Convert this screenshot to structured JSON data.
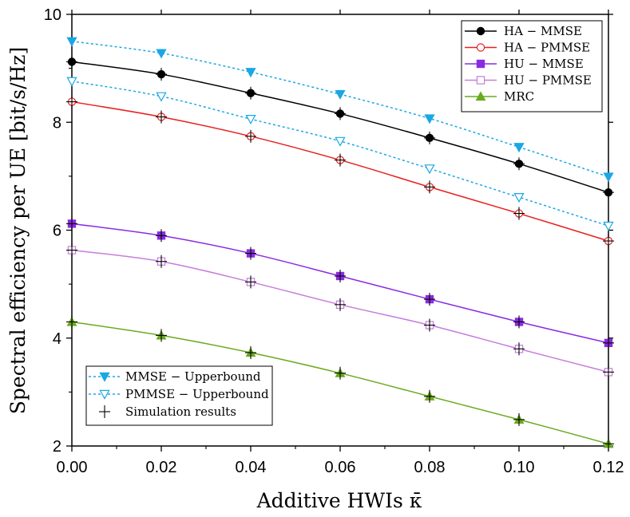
{
  "chart_data": {
    "type": "line",
    "xlabel": "Additive HWIs  κ̄",
    "ylabel": "Spectral efficiency per UE [bit/s/Hz]",
    "xlim": [
      0,
      0.12
    ],
    "ylim": [
      2,
      10
    ],
    "x_ticks": [
      0.0,
      0.02,
      0.04,
      0.06,
      0.08,
      0.1,
      0.12
    ],
    "x_tick_labels": [
      "0.00",
      "0.02",
      "0.04",
      "0.06",
      "0.08",
      "0.10",
      "0.12"
    ],
    "y_ticks": [
      2,
      4,
      6,
      8,
      10
    ],
    "y_tick_labels": [
      "2",
      "4",
      "6",
      "8",
      "10"
    ],
    "x": [
      0.0,
      0.02,
      0.04,
      0.06,
      0.08,
      0.1,
      0.12
    ],
    "series": [
      {
        "name": "HA − MMSE",
        "color": "#000000",
        "marker": "filled-circle",
        "line": "solid",
        "legend": "top-right",
        "values": [
          9.12,
          8.89,
          8.54,
          8.16,
          7.71,
          7.23,
          6.7
        ]
      },
      {
        "name": "HA − PMMSE",
        "color": "#e8201e",
        "marker": "open-circle",
        "line": "solid",
        "legend": "top-right",
        "values": [
          8.38,
          8.1,
          7.74,
          7.3,
          6.8,
          6.31,
          5.8
        ]
      },
      {
        "name": "HU − MMSE",
        "color": "#8a2be2",
        "marker": "filled-square",
        "line": "solid",
        "legend": "top-right",
        "values": [
          6.12,
          5.9,
          5.57,
          5.15,
          4.72,
          4.3,
          3.91
        ]
      },
      {
        "name": "HU − PMMSE",
        "color": "#c77ddb",
        "marker": "open-square",
        "line": "solid",
        "legend": "top-right",
        "values": [
          5.63,
          5.42,
          5.04,
          4.62,
          4.24,
          3.8,
          3.37
        ]
      },
      {
        "name": "MRC",
        "color": "#6aaa1e",
        "marker": "filled-triangle-up",
        "line": "solid",
        "legend": "top-right",
        "values": [
          4.3,
          4.05,
          3.73,
          3.35,
          2.92,
          2.49,
          2.04
        ]
      },
      {
        "name": "MMSE − Upperbound",
        "color": "#1aa7e6",
        "marker": "filled-triangle-down",
        "line": "dotted",
        "legend": "bottom-left",
        "values": [
          9.5,
          9.28,
          8.93,
          8.52,
          8.07,
          7.54,
          6.99
        ]
      },
      {
        "name": "PMMSE − Upperbound",
        "color": "#1aa7e6",
        "marker": "open-triangle-down",
        "line": "dotted",
        "legend": "bottom-left",
        "values": [
          8.76,
          8.48,
          8.06,
          7.65,
          7.14,
          6.61,
          6.08
        ]
      },
      {
        "name": "Simulation results",
        "color": "#000000",
        "marker": "plus",
        "line": "none",
        "legend": "bottom-left",
        "on_series": [
          "HA − MMSE",
          "HA − PMMSE",
          "HU − MMSE",
          "HU − PMMSE",
          "MRC"
        ]
      }
    ]
  }
}
